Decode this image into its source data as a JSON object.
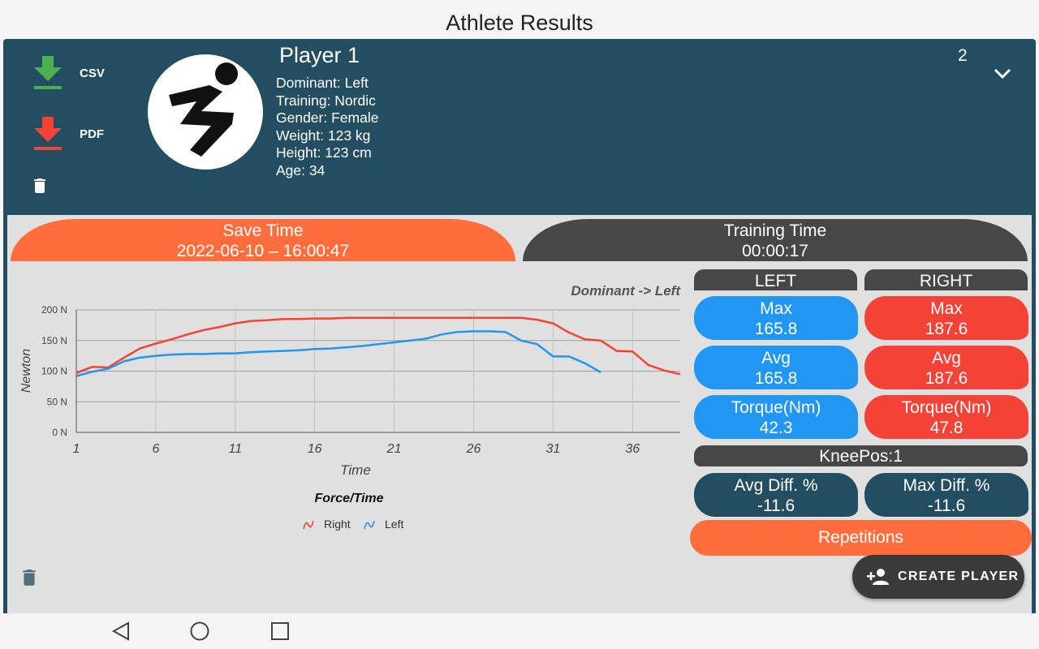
{
  "app": {
    "title": "Athlete Results"
  },
  "player": {
    "name": "Player 1",
    "count": "2",
    "info": [
      "Dominant: Left",
      "Training: Nordic",
      "Gender: Female",
      "Weight: 123 kg",
      "Height: 123 cm",
      "Age: 34"
    ]
  },
  "downloads": {
    "csv_label": "CSV",
    "pdf_label": "PDF",
    "csv_color": "#4caf50",
    "pdf_color": "#f44336"
  },
  "save_time": {
    "label": "Save Time",
    "value": "2022-06-10 – 16:00:47"
  },
  "training_time": {
    "label": "Training Time",
    "value": "00:00:17"
  },
  "dominant_label": "Dominant -> Left",
  "stats": {
    "left_header": "LEFT",
    "right_header": "RIGHT",
    "left_max_label": "Max",
    "left_max": "165.8",
    "right_max_label": "Max",
    "right_max": "187.6",
    "left_avg_label": "Avg",
    "left_avg": "165.8",
    "right_avg_label": "Avg",
    "right_avg": "187.6",
    "left_torque_label": "Torque(Nm)",
    "left_torque": "42.3",
    "right_torque_label": "Torque(Nm)",
    "right_torque": "47.8",
    "knee_pos": "KneePos:1",
    "avg_diff_label": "Avg Diff. %",
    "avg_diff": "-11.6",
    "max_diff_label": "Max Diff. %",
    "max_diff": "-11.6"
  },
  "repetitions_label": "Repetitions",
  "fab_label": "CREATE PLAYER",
  "colors": {
    "header_bg": "#234d60",
    "accent_orange": "#ff6d3d",
    "left_blue": "#2196f3",
    "right_red": "#f44336"
  },
  "chart_data": {
    "type": "line",
    "title": "Force/Time",
    "xlabel": "Time",
    "ylabel": "Newton",
    "xlim": [
      1,
      39
    ],
    "ylim": [
      0,
      200
    ],
    "x_ticks": [
      "1",
      "6",
      "11",
      "16",
      "21",
      "26",
      "31",
      "36"
    ],
    "y_ticks": [
      "0 N",
      "50 N",
      "100 N",
      "150 N",
      "200 N"
    ],
    "legend_position": "bottom",
    "series": [
      {
        "name": "Right",
        "color": "#f44336",
        "x": [
          1,
          2,
          3,
          4,
          5,
          6,
          7,
          8,
          9,
          10,
          11,
          12,
          13,
          14,
          15,
          16,
          17,
          18,
          19,
          20,
          21,
          22,
          23,
          24,
          25,
          26,
          27,
          28,
          29,
          30,
          31,
          32,
          33,
          34,
          35,
          36,
          37,
          38,
          39
        ],
        "values": [
          97,
          107,
          106,
          122,
          137,
          145,
          152,
          160,
          167,
          172,
          178,
          182,
          183,
          185,
          185,
          186,
          186,
          187,
          187,
          187,
          187,
          187,
          187,
          187,
          187,
          187,
          187,
          187,
          187,
          184,
          178,
          163,
          152,
          150,
          133,
          132,
          110,
          101,
          95
        ]
      },
      {
        "name": "Left",
        "color": "#2196f3",
        "x": [
          1,
          2,
          3,
          4,
          5,
          6,
          7,
          8,
          9,
          10,
          11,
          12,
          13,
          14,
          15,
          16,
          17,
          18,
          19,
          20,
          21,
          22,
          23,
          24,
          25,
          26,
          27,
          28,
          29,
          30,
          31,
          32,
          33,
          34
        ],
        "values": [
          92,
          99,
          104,
          116,
          122,
          125,
          127,
          128,
          128,
          129,
          129,
          131,
          132,
          133,
          134,
          136,
          137,
          139,
          141,
          144,
          147,
          150,
          153,
          160,
          164,
          165,
          165,
          164,
          150,
          144,
          124,
          124,
          113,
          98
        ]
      }
    ]
  }
}
